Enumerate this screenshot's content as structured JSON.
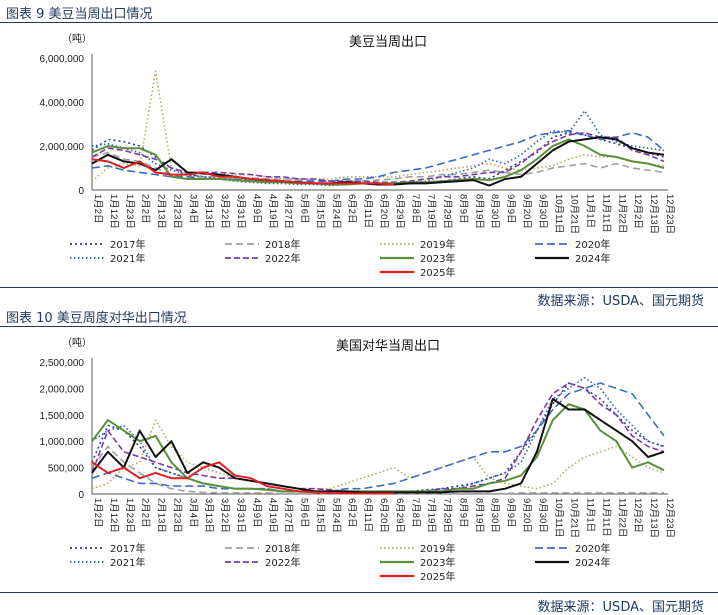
{
  "figures": [
    {
      "label": "图表 9 美豆当周出口情况",
      "source": "数据来源：USDA、国元期货"
    },
    {
      "label": "图表 10 美豆周度对华出口情况",
      "source": "数据来源：USDA、国元期货"
    }
  ],
  "chart_data": [
    {
      "type": "line",
      "title": "美豆当周出口",
      "unit": "（吨）",
      "ylim": [
        0,
        6000000
      ],
      "yticks": [
        "6,000,000",
        "4,000,000",
        "2,000,000",
        "0"
      ],
      "ytick_values": [
        6000000,
        4000000,
        2000000,
        0
      ],
      "xticks": [
        "1月2日",
        "1月12日",
        "1月23日",
        "2月2日",
        "2月13日",
        "2月23日",
        "3月4日",
        "3月13日",
        "3月22日",
        "3月31日",
        "4月9日",
        "4月19日",
        "4月27日",
        "5月6日",
        "5月15日",
        "5月24日",
        "6月2日",
        "6月11日",
        "6月20日",
        "6月29日",
        "7月8日",
        "7月19日",
        "7月29日",
        "8月9日",
        "8月19日",
        "8月30日",
        "9月9日",
        "9月20日",
        "9月30日",
        "10月11日",
        "10月21日",
        "11月1日",
        "11月11日",
        "11月22日",
        "12月2日",
        "12月13日",
        "12月23日"
      ],
      "legend": [
        "2017年",
        "2018年",
        "2019年",
        "2020年",
        "2021年",
        "2022年",
        "2023年",
        "2024年",
        "2025年"
      ],
      "series": [
        {
          "name": "2017年",
          "color": "#2e3f8f",
          "dash": "2,3",
          "values": [
            1.8,
            2.3,
            2.2,
            2.0,
            1.5,
            1.0,
            0.7,
            0.6,
            0.5,
            0.45,
            0.5,
            0.4,
            0.4,
            0.35,
            0.3,
            0.25,
            0.3,
            0.3,
            0.25,
            0.25,
            0.3,
            0.35,
            0.4,
            0.5,
            0.6,
            0.5,
            0.9,
            1.3,
            1.7,
            2.4,
            2.6,
            2.5,
            2.3,
            2.1,
            1.9,
            1.7,
            1.5
          ]
        },
        {
          "name": "2018年",
          "color": "#a0a0a0",
          "dash": "7,4",
          "values": [
            1.5,
            1.7,
            1.4,
            1.3,
            1.0,
            0.7,
            0.6,
            0.6,
            0.6,
            0.5,
            0.55,
            0.5,
            0.5,
            0.5,
            0.45,
            0.4,
            0.4,
            0.4,
            0.45,
            0.5,
            0.6,
            0.6,
            0.7,
            0.7,
            0.8,
            0.9,
            0.8,
            0.7,
            0.8,
            1.0,
            1.1,
            1.2,
            1.0,
            1.2,
            1.0,
            0.9,
            0.8
          ]
        },
        {
          "name": "2019年",
          "color": "#b5aa5c",
          "dash": "1.5,2.5",
          "values": [
            0.4,
            1.0,
            1.2,
            1.1,
            5.4,
            1.0,
            0.8,
            0.8,
            0.7,
            0.7,
            0.7,
            0.6,
            0.5,
            0.5,
            0.5,
            0.5,
            0.6,
            0.6,
            0.6,
            0.6,
            0.7,
            0.8,
            0.9,
            1.0,
            1.1,
            1.2,
            1.0,
            0.9,
            1.0,
            1.1,
            1.4,
            1.6,
            1.5,
            1.5,
            1.3,
            1.2,
            1.1
          ]
        },
        {
          "name": "2020年",
          "color": "#3a6ec3",
          "dash": "8,4",
          "values": [
            1.0,
            1.1,
            0.9,
            0.8,
            0.7,
            0.6,
            0.6,
            0.5,
            0.5,
            0.5,
            0.4,
            0.4,
            0.4,
            0.4,
            0.4,
            0.4,
            0.5,
            0.5,
            0.6,
            0.8,
            0.9,
            1.0,
            1.2,
            1.4,
            1.6,
            1.8,
            2.0,
            2.2,
            2.5,
            2.6,
            2.7,
            2.5,
            2.3,
            2.4,
            2.6,
            2.4,
            1.8
          ]
        },
        {
          "name": "2021年",
          "color": "#2f5fb0",
          "dash": "1.5,2.5",
          "values": [
            2.0,
            2.1,
            1.9,
            1.7,
            1.2,
            0.9,
            0.7,
            0.6,
            0.5,
            0.4,
            0.35,
            0.3,
            0.3,
            0.25,
            0.25,
            0.2,
            0.25,
            0.3,
            0.3,
            0.3,
            0.35,
            0.4,
            0.6,
            0.8,
            1.0,
            1.4,
            1.2,
            1.6,
            2.2,
            2.7,
            2.6,
            3.6,
            2.5,
            2.2,
            2.0,
            1.9,
            1.8
          ]
        },
        {
          "name": "2022年",
          "color": "#7b3aa6",
          "dash": "6,3",
          "values": [
            1.5,
            1.9,
            1.8,
            1.6,
            1.4,
            1.0,
            0.8,
            0.8,
            0.8,
            0.75,
            0.7,
            0.6,
            0.6,
            0.5,
            0.5,
            0.4,
            0.4,
            0.4,
            0.35,
            0.35,
            0.4,
            0.5,
            0.6,
            0.6,
            0.7,
            0.8,
            0.8,
            1.2,
            1.8,
            2.2,
            2.5,
            2.6,
            2.4,
            2.4,
            1.8,
            1.6,
            1.3
          ]
        },
        {
          "name": "2023年",
          "color": "#5a8f3c",
          "dash": "",
          "values": [
            1.7,
            2.0,
            1.9,
            1.9,
            1.6,
            0.6,
            0.5,
            0.5,
            0.5,
            0.45,
            0.4,
            0.35,
            0.35,
            0.3,
            0.3,
            0.25,
            0.25,
            0.3,
            0.3,
            0.3,
            0.35,
            0.35,
            0.4,
            0.45,
            0.5,
            0.45,
            0.6,
            0.9,
            1.4,
            2.0,
            2.3,
            2.0,
            1.6,
            1.5,
            1.3,
            1.2,
            1.0
          ]
        },
        {
          "name": "2024年",
          "color": "#111111",
          "dash": "",
          "values": [
            1.2,
            1.6,
            1.3,
            1.2,
            0.9,
            1.4,
            0.8,
            0.75,
            0.7,
            0.6,
            0.5,
            0.45,
            0.4,
            0.35,
            0.3,
            0.3,
            0.35,
            0.3,
            0.25,
            0.25,
            0.3,
            0.3,
            0.35,
            0.4,
            0.45,
            0.2,
            0.5,
            0.6,
            1.2,
            1.8,
            2.2,
            2.3,
            2.4,
            2.3,
            1.9,
            1.7,
            1.6
          ]
        },
        {
          "name": "2025年",
          "color": "#e02020",
          "dash": "",
          "values": [
            1.4,
            1.3,
            1.0,
            1.3,
            0.8,
            0.7,
            0.7,
            0.8,
            0.6,
            0.6,
            0.5,
            0.45,
            0.4,
            0.35,
            0.3,
            0.3,
            0.3,
            0.3,
            0.3,
            0.25
          ]
        }
      ]
    },
    {
      "type": "line",
      "title": "美国对华当周出口",
      "unit": "（吨）",
      "ylim": [
        0,
        2500000
      ],
      "yticks": [
        "2,500,000",
        "2,000,000",
        "1,500,000",
        "1,000,000",
        "500,000",
        "0"
      ],
      "ytick_values": [
        2500000,
        2000000,
        1500000,
        1000000,
        500000,
        0
      ],
      "xticks": [
        "1月2日",
        "1月12日",
        "1月23日",
        "2月2日",
        "2月13日",
        "2月23日",
        "3月4日",
        "3月13日",
        "3月22日",
        "3月31日",
        "4月9日",
        "4月19日",
        "4月27日",
        "5月6日",
        "5月15日",
        "5月24日",
        "6月2日",
        "6月11日",
        "6月20日",
        "6月29日",
        "7月8日",
        "7月19日",
        "7月29日",
        "8月9日",
        "8月19日",
        "8月30日",
        "9月9日",
        "9月20日",
        "9月30日",
        "10月11日",
        "10月21日",
        "11月1日",
        "11月11日",
        "11月22日",
        "12月2日",
        "12月13日",
        "12月23日"
      ],
      "legend": [
        "2017年",
        "2018年",
        "2019年",
        "2020年",
        "2021年",
        "2022年",
        "2023年",
        "2024年",
        "2025年"
      ],
      "series": [
        {
          "name": "2017年",
          "color": "#2e3f8f",
          "dash": "2,3",
          "values": [
            0.6,
            1.3,
            1.2,
            0.9,
            0.5,
            0.4,
            0.3,
            0.2,
            0.15,
            0.1,
            0.1,
            0.08,
            0.05,
            0.05,
            0.03,
            0.03,
            0.05,
            0.05,
            0.05,
            0.05,
            0.05,
            0.08,
            0.1,
            0.15,
            0.2,
            0.3,
            0.4,
            0.8,
            1.2,
            1.7,
            2.1,
            2.0,
            1.8,
            1.5,
            1.2,
            1.0,
            0.9
          ]
        },
        {
          "name": "2018年",
          "color": "#a0a0a0",
          "dash": "7,4",
          "values": [
            0.5,
            0.9,
            0.6,
            0.4,
            0.2,
            0.1,
            0.05,
            0.03,
            0.02,
            0.02,
            0.02,
            0.02,
            0.01,
            0.01,
            0.01,
            0.01,
            0.01,
            0.01,
            0.01,
            0.01,
            0.01,
            0.01,
            0.01,
            0.01,
            0.01,
            0.01,
            0.01,
            0.02,
            0.02,
            0.02,
            0.02,
            0.02,
            0.02,
            0.02,
            0.02,
            0.02,
            0.02
          ]
        },
        {
          "name": "2019年",
          "color": "#b5aa5c",
          "dash": "1.5,2.5",
          "values": [
            0.1,
            0.2,
            0.5,
            0.6,
            1.4,
            0.9,
            0.6,
            0.5,
            0.4,
            0.3,
            0.25,
            0.2,
            0.15,
            0.1,
            0.1,
            0.1,
            0.2,
            0.3,
            0.4,
            0.5,
            0.3,
            0.4,
            0.5,
            0.6,
            0.7,
            0.3,
            0.2,
            0.15,
            0.1,
            0.2,
            0.5,
            0.7,
            0.8,
            0.9,
            0.7,
            0.5,
            0.4
          ]
        },
        {
          "name": "2020年",
          "color": "#3a6ec3",
          "dash": "8,4",
          "values": [
            0.3,
            0.4,
            0.3,
            0.2,
            0.2,
            0.15,
            0.15,
            0.15,
            0.1,
            0.1,
            0.1,
            0.1,
            0.05,
            0.05,
            0.05,
            0.05,
            0.1,
            0.1,
            0.15,
            0.2,
            0.3,
            0.4,
            0.5,
            0.6,
            0.7,
            0.8,
            0.8,
            0.9,
            1.2,
            1.6,
            1.9,
            2.0,
            2.1,
            2.0,
            1.9,
            1.5,
            1.1
          ]
        },
        {
          "name": "2021年",
          "color": "#2f5fb0",
          "dash": "1.5,2.5",
          "values": [
            1.0,
            1.2,
            1.3,
            1.0,
            0.5,
            0.4,
            0.3,
            0.2,
            0.15,
            0.1,
            0.1,
            0.1,
            0.05,
            0.05,
            0.05,
            0.05,
            0.05,
            0.05,
            0.05,
            0.05,
            0.05,
            0.05,
            0.1,
            0.1,
            0.2,
            0.3,
            0.4,
            0.6,
            1.2,
            1.8,
            2.0,
            2.2,
            2.0,
            1.6,
            1.3,
            1.0,
            0.9
          ]
        },
        {
          "name": "2022年",
          "color": "#7b3aa6",
          "dash": "6,3",
          "values": [
            0.4,
            1.2,
            0.8,
            0.7,
            0.6,
            0.5,
            0.4,
            0.35,
            0.3,
            0.3,
            0.25,
            0.2,
            0.15,
            0.1,
            0.1,
            0.08,
            0.05,
            0.05,
            0.05,
            0.05,
            0.05,
            0.05,
            0.1,
            0.1,
            0.15,
            0.2,
            0.3,
            0.8,
            1.4,
            1.9,
            2.1,
            2.0,
            1.7,
            1.5,
            1.1,
            0.9,
            0.8
          ]
        },
        {
          "name": "2023年",
          "color": "#5a8f3c",
          "dash": "",
          "values": [
            1.0,
            1.4,
            1.2,
            1.0,
            1.1,
            0.6,
            0.3,
            0.2,
            0.15,
            0.1,
            0.1,
            0.08,
            0.05,
            0.05,
            0.05,
            0.05,
            0.05,
            0.05,
            0.05,
            0.05,
            0.05,
            0.05,
            0.05,
            0.1,
            0.1,
            0.2,
            0.25,
            0.35,
            0.7,
            1.4,
            1.7,
            1.6,
            1.2,
            1.0,
            0.5,
            0.6,
            0.45
          ]
        },
        {
          "name": "2024年",
          "color": "#111111",
          "dash": "",
          "values": [
            0.4,
            0.8,
            0.5,
            1.2,
            0.7,
            1.0,
            0.4,
            0.6,
            0.5,
            0.3,
            0.25,
            0.2,
            0.15,
            0.1,
            0.05,
            0.05,
            0.05,
            0.03,
            0.03,
            0.03,
            0.03,
            0.03,
            0.03,
            0.05,
            0.05,
            0.05,
            0.1,
            0.2,
            0.8,
            1.8,
            1.6,
            1.6,
            1.4,
            1.2,
            1.0,
            0.7,
            0.8
          ]
        },
        {
          "name": "2025年",
          "color": "#e02020",
          "dash": "",
          "values": [
            0.6,
            0.4,
            0.5,
            0.3,
            0.4,
            0.3,
            0.3,
            0.5,
            0.6,
            0.35,
            0.3,
            0.15,
            0.1,
            0.05,
            0.03,
            0.02,
            0.01,
            0.01,
            0.01,
            0.01
          ]
        }
      ]
    }
  ]
}
